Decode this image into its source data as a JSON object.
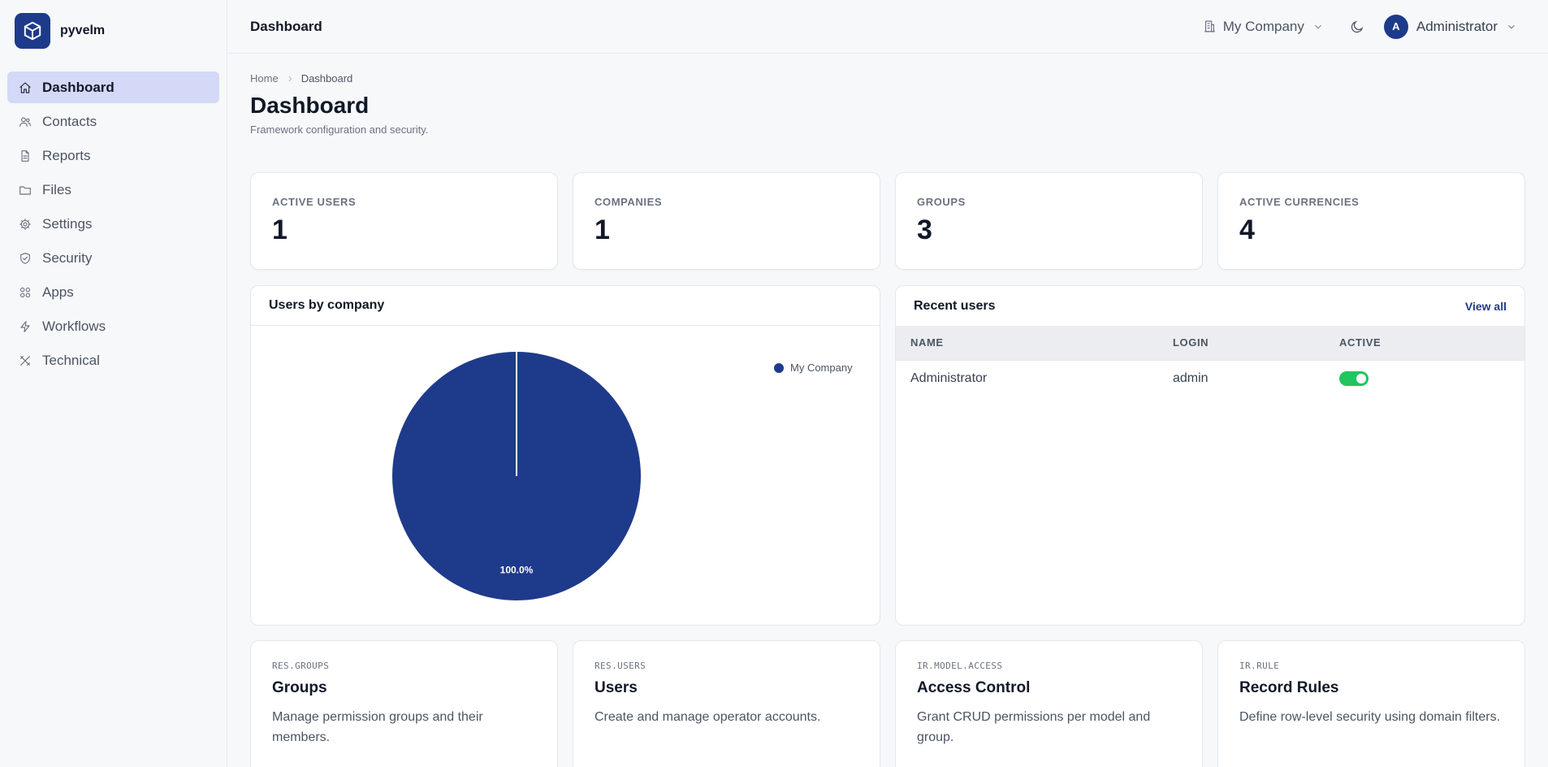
{
  "brand": {
    "name": "pyvelm"
  },
  "sidebar": {
    "items": [
      {
        "label": "Dashboard",
        "icon": "home-icon",
        "active": true
      },
      {
        "label": "Contacts",
        "icon": "users-icon"
      },
      {
        "label": "Reports",
        "icon": "file-text-icon"
      },
      {
        "label": "Files",
        "icon": "folder-icon"
      },
      {
        "label": "Settings",
        "icon": "gear-icon"
      },
      {
        "label": "Security",
        "icon": "shield-icon"
      },
      {
        "label": "Apps",
        "icon": "grid-icon"
      },
      {
        "label": "Workflows",
        "icon": "lightning-icon"
      },
      {
        "label": "Technical",
        "icon": "tools-icon"
      }
    ]
  },
  "topbar": {
    "title": "Dashboard",
    "company": "My Company",
    "user": {
      "initial": "A",
      "name": "Administrator"
    }
  },
  "breadcrumb": {
    "home": "Home",
    "current": "Dashboard"
  },
  "page": {
    "title": "Dashboard",
    "subtitle": "Framework configuration and security."
  },
  "stats": [
    {
      "label": "ACTIVE USERS",
      "value": "1"
    },
    {
      "label": "COMPANIES",
      "value": "1"
    },
    {
      "label": "GROUPS",
      "value": "3"
    },
    {
      "label": "ACTIVE CURRENCIES",
      "value": "4"
    }
  ],
  "users_by_company": {
    "title": "Users by company"
  },
  "chart_data": {
    "type": "pie",
    "categories": [
      "My Company"
    ],
    "values": [
      1
    ],
    "data_labels": [
      "100.0%"
    ],
    "legend": [
      "My Company"
    ],
    "legend_position": "top-right",
    "colors": [
      "#1e3a8a"
    ]
  },
  "recent_users": {
    "title": "Recent users",
    "view_all": "View all",
    "columns": [
      "NAME",
      "LOGIN",
      "ACTIVE"
    ],
    "rows": [
      {
        "name": "Administrator",
        "login": "admin",
        "active": true
      }
    ]
  },
  "models": [
    {
      "code": "RES.GROUPS",
      "title": "Groups",
      "desc": "Manage permission groups and their members."
    },
    {
      "code": "RES.USERS",
      "title": "Users",
      "desc": "Create and manage operator accounts."
    },
    {
      "code": "IR.MODEL.ACCESS",
      "title": "Access Control",
      "desc": "Grant CRUD permissions per model and group."
    },
    {
      "code": "IR.RULE",
      "title": "Record Rules",
      "desc": "Define row-level security using domain filters."
    }
  ],
  "colors": {
    "brand": "#1e3a8a",
    "active_nav": "#d4d9f7",
    "toggle_on": "#22c55e"
  }
}
